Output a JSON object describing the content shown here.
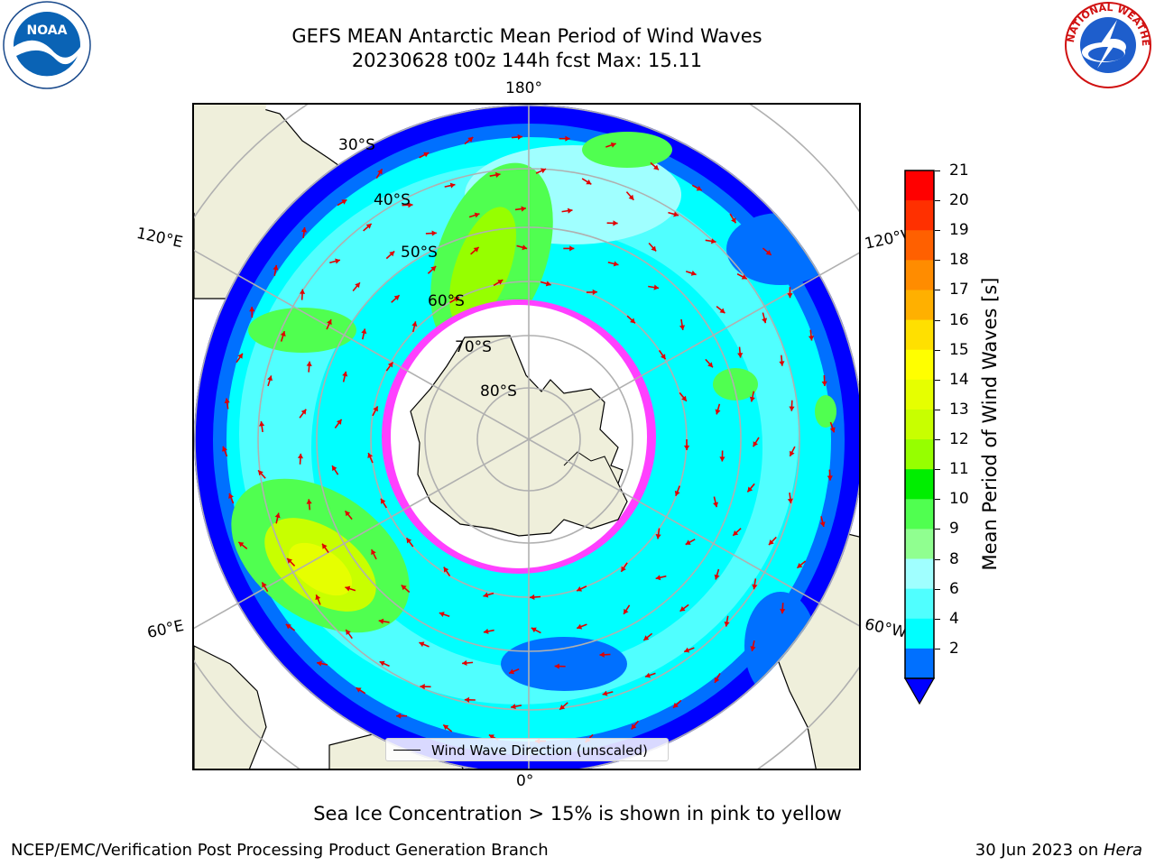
{
  "title": {
    "line1": "GEFS MEAN Antarctic Mean Period of Wind Waves",
    "line2": "20230628 t00z 144h fcst   Max: 15.11"
  },
  "map": {
    "projection": "south-polar-stereographic",
    "longitude_labels": {
      "top": "180°",
      "bottom": "0°",
      "upper_left": "120°E",
      "upper_right": "120°W",
      "lower_left": "60°E",
      "lower_right": "60°W"
    },
    "latitude_labels": [
      "30°S",
      "40°S",
      "50°S",
      "60°S",
      "70°S",
      "80°S"
    ],
    "colors": {
      "land": "#efefdb",
      "graticule": "#b0b0b0",
      "arrows": "#e00000",
      "sea_ice": "#ff40ff"
    }
  },
  "legend": {
    "label": "Wind Wave Direction (unscaled)"
  },
  "colorbar": {
    "label": "Mean Period of Wind Waves [s]",
    "ticks": [
      "21",
      "20",
      "19",
      "18",
      "17",
      "16",
      "15",
      "14",
      "13",
      "12",
      "11",
      "10",
      "9",
      "8",
      "6",
      "4",
      "2"
    ],
    "colors_top_to_bottom": [
      "#ff0000",
      "#ff3000",
      "#ff6000",
      "#ff8c00",
      "#ffb000",
      "#ffe000",
      "#ffff00",
      "#e6ff00",
      "#c8ff00",
      "#96ff00",
      "#00ee00",
      "#50ff50",
      "#90ff90",
      "#a0ffff",
      "#50ffff",
      "#00ffff",
      "#0070ff"
    ],
    "under_color": "#0000ff"
  },
  "note": "Sea Ice Concentration > 15% is shown in pink to yellow",
  "footer": {
    "left": "NCEP/EMC/Verification Post Processing Product Generation Branch",
    "right_prefix": "30 Jun 2023 on ",
    "right_machine": "Hera"
  },
  "logos": {
    "noaa": "NOAA",
    "nws": "NATIONAL WEATHER SERVICE"
  }
}
